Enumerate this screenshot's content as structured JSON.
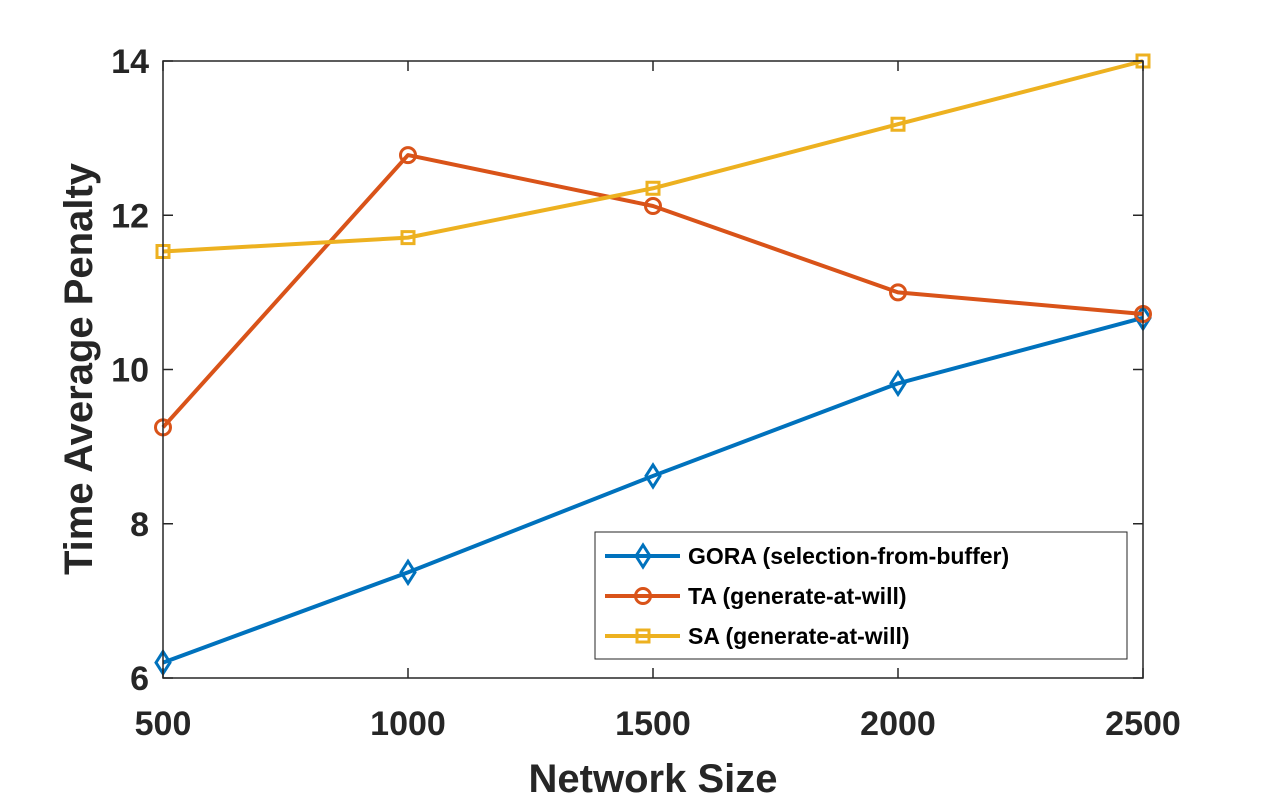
{
  "chart_data": {
    "type": "line",
    "title": "",
    "xlabel": "Network Size",
    "ylabel": "Time Average Penalty",
    "x": [
      500,
      1000,
      1500,
      2000,
      2500
    ],
    "xlim": [
      500,
      2500
    ],
    "ylim": [
      6,
      14
    ],
    "xticks": [
      500,
      1000,
      1500,
      2000,
      2500
    ],
    "yticks": [
      6,
      8,
      10,
      12,
      14
    ],
    "xtick_labels": [
      "500",
      "1000",
      "1500",
      "2000",
      "2500"
    ],
    "ytick_labels": [
      "6",
      "8",
      "10",
      "12",
      "14"
    ],
    "grid": false,
    "legend_position": "bottom-right",
    "series": [
      {
        "name": "GORA (selection-from-buffer)",
        "key": "gora",
        "color": "#0072BD",
        "marker": "diamond",
        "values": [
          6.2,
          7.37,
          8.62,
          9.82,
          10.67
        ]
      },
      {
        "name": "TA (generate-at-will)",
        "key": "ta",
        "color": "#D95319",
        "marker": "circle",
        "values": [
          9.25,
          12.78,
          12.12,
          11.0,
          10.72
        ]
      },
      {
        "name": "SA (generate-at-will)",
        "key": "sa",
        "color": "#EDB120",
        "marker": "square",
        "values": [
          11.53,
          11.71,
          12.35,
          13.18,
          14.0
        ]
      }
    ]
  }
}
